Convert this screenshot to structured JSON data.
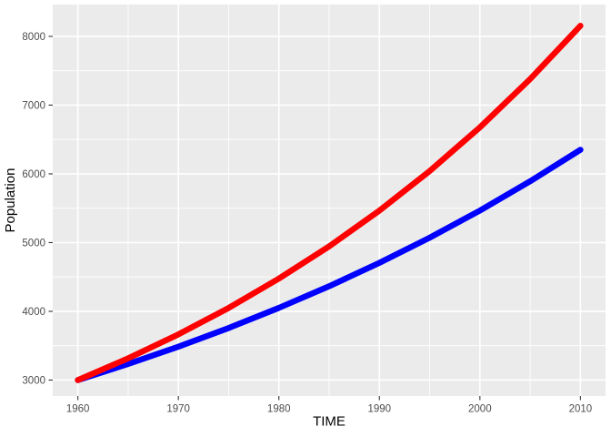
{
  "style": {
    "figure_background": "#FFFFFF",
    "panel_background": "#EBEBEB",
    "grid_color": "#FFFFFF",
    "tick_mark_color": "#333333",
    "tick_label_color": "#4D4D4D",
    "axis_title_color": "#000000"
  },
  "chart_data": {
    "type": "line",
    "title": "",
    "xlabel": "TIME",
    "ylabel": "Population",
    "legend_position": "none",
    "grid": "major and minor white gridlines on gray panel",
    "xlim": [
      1957.5,
      2012.5
    ],
    "ylim": [
      2768,
      8463
    ],
    "x_ticks": [
      1960,
      1970,
      1980,
      1990,
      2000,
      2010
    ],
    "y_ticks": [
      3000,
      4000,
      5000,
      6000,
      7000,
      8000
    ],
    "x": [
      1960,
      1965,
      1970,
      1975,
      1980,
      1985,
      1990,
      1995,
      2000,
      2005,
      2010
    ],
    "series": [
      {
        "name": "blue_curve",
        "color": "#0000FF",
        "values": [
          3000,
          3234,
          3486,
          3757,
          4050,
          4365,
          4705,
          5071,
          5466,
          5892,
          6351
        ]
      },
      {
        "name": "red_curve",
        "color": "#FF0000",
        "values": [
          3000,
          3316,
          3664,
          4050,
          4476,
          4946,
          5466,
          6041,
          6677,
          7379,
          8155
        ]
      }
    ]
  }
}
